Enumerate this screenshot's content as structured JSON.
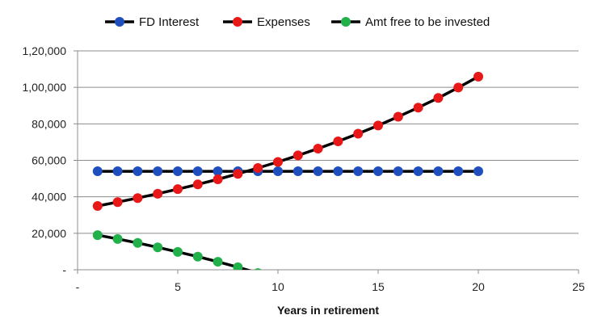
{
  "chart_data": {
    "type": "line",
    "xlabel": "Years in retirement",
    "ylabel": "",
    "xlim": [
      0,
      25
    ],
    "ylim": [
      0,
      120000
    ],
    "x_ticks": [
      0,
      5,
      10,
      15,
      20,
      25
    ],
    "x_tick_labels": [
      "-",
      "5",
      "10",
      "15",
      "20",
      "25"
    ],
    "y_ticks": [
      0,
      20000,
      40000,
      60000,
      80000,
      100000,
      120000
    ],
    "y_tick_labels": [
      "-",
      "20,000",
      "40,000",
      "60,000",
      "80,000",
      "1,00,000",
      "1,20,000"
    ],
    "grid": "horizontal",
    "legend_position": "top",
    "line_color": "#000000",
    "series": [
      {
        "name": "FD Interest",
        "color": "#1f4fbf",
        "x": [
          1,
          2,
          3,
          4,
          5,
          6,
          7,
          8,
          9,
          10,
          11,
          12,
          13,
          14,
          15,
          16,
          17,
          18,
          19,
          20
        ],
        "values": [
          54000,
          54000,
          54000,
          54000,
          54000,
          54000,
          54000,
          54000,
          54000,
          54000,
          54000,
          54000,
          54000,
          54000,
          54000,
          54000,
          54000,
          54000,
          54000,
          54000
        ]
      },
      {
        "name": "Expenses",
        "color": "#e81818",
        "x": [
          1,
          2,
          3,
          4,
          5,
          6,
          7,
          8,
          9,
          10,
          11,
          12,
          13,
          14,
          15,
          16,
          17,
          18,
          19,
          20
        ],
        "values": [
          35000,
          37100,
          39300,
          41700,
          44200,
          46800,
          49600,
          52600,
          55800,
          59100,
          62700,
          66400,
          70400,
          74600,
          79100,
          83900,
          88900,
          94200,
          99900,
          105900
        ]
      },
      {
        "name": "Amt free to be invested",
        "color": "#22b04a",
        "x": [
          1,
          2,
          3,
          4,
          5,
          6,
          7,
          8,
          9
        ],
        "values": [
          19000,
          16900,
          14700,
          12300,
          9800,
          7200,
          4400,
          1400,
          -1800
        ]
      }
    ]
  }
}
